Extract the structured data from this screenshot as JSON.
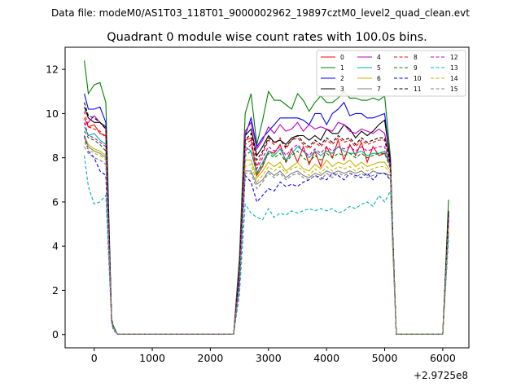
{
  "chart_data": {
    "type": "line",
    "suptitle": "Data file: modeM0/AS1T03_118T01_9000002962_19897cztM0_level2_quad_clean.evt",
    "title": "Quadrant 0 module wise count rates with 100.0s bins.",
    "xlabel": "",
    "ylabel": "",
    "x_offset_label": "+2.9725e8",
    "xlim": [
      -500,
      6450
    ],
    "ylim": [
      -0.6,
      13.0
    ],
    "x_ticks": [
      0,
      1000,
      2000,
      3000,
      4000,
      5000,
      6000
    ],
    "y_ticks": [
      0,
      2,
      4,
      6,
      8,
      10,
      12
    ],
    "grid": false,
    "legend_position": "top-right",
    "x": [
      -170,
      -100,
      0,
      100,
      200,
      300,
      330,
      400,
      500,
      2400,
      2500,
      2600,
      2700,
      2800,
      2900,
      3000,
      3100,
      3200,
      3300,
      3400,
      3500,
      3600,
      3700,
      3800,
      3900,
      4000,
      4100,
      4200,
      4300,
      4400,
      4500,
      4600,
      4700,
      4800,
      4900,
      5000,
      5100,
      5140,
      5200,
      5300,
      6000,
      6100
    ],
    "series": [
      {
        "name": "0",
        "color": "#ff0000",
        "style": "solid",
        "values": [
          9.8,
          9.4,
          9.5,
          9.1,
          9.0,
          0.6,
          0.3,
          0.02,
          0.02,
          0.02,
          2.5,
          8.8,
          8.9,
          7.2,
          7.6,
          8.3,
          8.2,
          8.6,
          7.8,
          8.4,
          7.8,
          8.5,
          7.7,
          8.3,
          7.6,
          8.5,
          8.0,
          8.8,
          7.9,
          8.6,
          8.1,
          8.7,
          7.8,
          8.5,
          8.1,
          8.2,
          7.7,
          4.2,
          0.02,
          0.02,
          0.02,
          5.5
        ]
      },
      {
        "name": "1",
        "color": "#008000",
        "style": "solid",
        "values": [
          12.4,
          10.9,
          11.3,
          11.4,
          10.5,
          0.7,
          0.4,
          0.02,
          0.02,
          0.02,
          3.5,
          10.0,
          10.9,
          8.6,
          9.7,
          11.0,
          10.6,
          10.6,
          10.4,
          10.2,
          10.9,
          10.6,
          10.1,
          10.5,
          10.8,
          10.5,
          10.5,
          10.7,
          11.0,
          10.7,
          10.7,
          10.6,
          10.6,
          10.7,
          10.6,
          10.8,
          8.0,
          4.5,
          0.02,
          0.02,
          0.02,
          6.1
        ]
      },
      {
        "name": "2",
        "color": "#0000ff",
        "style": "solid",
        "values": [
          10.9,
          10.2,
          10.2,
          10.3,
          9.6,
          0.7,
          0.3,
          0.02,
          0.02,
          0.02,
          3.0,
          9.0,
          9.8,
          8.5,
          8.9,
          9.2,
          9.5,
          9.8,
          9.8,
          9.8,
          9.8,
          9.7,
          9.5,
          10.0,
          10.0,
          9.5,
          10.0,
          10.2,
          10.5,
          9.9,
          10.0,
          10.0,
          9.8,
          9.8,
          9.9,
          10.0,
          7.7,
          4.4,
          0.02,
          0.02,
          0.02,
          5.4
        ]
      },
      {
        "name": "3",
        "color": "#000000",
        "style": "solid",
        "values": [
          10.3,
          9.8,
          9.6,
          9.6,
          9.4,
          0.7,
          0.3,
          0.02,
          0.02,
          0.02,
          2.8,
          9.0,
          9.3,
          8.1,
          8.5,
          9.0,
          8.7,
          8.8,
          8.6,
          8.9,
          9.0,
          9.0,
          8.8,
          9.0,
          8.8,
          9.3,
          9.1,
          9.1,
          9.5,
          9.3,
          8.9,
          9.2,
          9.0,
          9.2,
          9.5,
          9.7,
          7.8,
          4.5,
          0.02,
          0.02,
          0.02,
          5.6
        ]
      },
      {
        "name": "4",
        "color": "#c000c0",
        "style": "solid",
        "values": [
          9.5,
          9.6,
          9.9,
          9.6,
          9.3,
          0.6,
          0.3,
          0.02,
          0.02,
          0.02,
          2.9,
          9.2,
          9.6,
          8.4,
          8.8,
          9.4,
          9.1,
          9.5,
          9.2,
          9.3,
          9.6,
          9.2,
          9.5,
          9.3,
          9.4,
          9.3,
          9.2,
          9.6,
          9.5,
          9.2,
          9.1,
          9.3,
          9.2,
          9.1,
          9.3,
          9.1,
          7.7,
          4.4,
          0.02,
          0.02,
          0.02,
          5.4
        ]
      },
      {
        "name": "5",
        "color": "#00b0a0",
        "style": "solid",
        "values": [
          9.4,
          9.0,
          9.1,
          8.8,
          8.6,
          0.6,
          0.3,
          0.02,
          0.02,
          0.02,
          2.6,
          8.5,
          8.3,
          7.3,
          7.8,
          8.3,
          8.1,
          8.4,
          7.9,
          8.2,
          8.5,
          8.3,
          8.0,
          8.3,
          8.1,
          8.3,
          8.2,
          8.5,
          8.3,
          8.2,
          8.2,
          8.3,
          8.1,
          8.2,
          8.2,
          8.3,
          7.6,
          4.3,
          0.02,
          0.02,
          0.02,
          5.2
        ]
      },
      {
        "name": "6",
        "color": "#c8b400",
        "style": "solid",
        "values": [
          9.0,
          8.6,
          8.4,
          8.3,
          8.1,
          0.6,
          0.3,
          0.02,
          0.02,
          0.02,
          2.4,
          7.9,
          7.9,
          7.1,
          7.4,
          7.8,
          7.6,
          7.8,
          7.4,
          7.6,
          7.8,
          7.5,
          7.4,
          7.7,
          7.5,
          7.9,
          7.6,
          7.8,
          7.7,
          7.9,
          7.6,
          7.8,
          7.6,
          7.7,
          7.8,
          7.8,
          7.4,
          4.2,
          0.02,
          0.02,
          0.02,
          5.0
        ]
      },
      {
        "name": "7",
        "color": "#808080",
        "style": "solid",
        "values": [
          8.9,
          8.5,
          8.3,
          8.2,
          8.0,
          0.6,
          0.3,
          0.02,
          0.02,
          0.02,
          2.3,
          7.4,
          7.4,
          6.8,
          7.0,
          7.4,
          7.2,
          7.4,
          7.1,
          7.3,
          7.4,
          7.2,
          7.1,
          7.3,
          7.2,
          7.4,
          7.3,
          7.4,
          7.3,
          7.4,
          7.3,
          7.4,
          7.2,
          7.4,
          7.3,
          7.3,
          7.2,
          4.1,
          0.02,
          0.02,
          0.02,
          4.8
        ]
      },
      {
        "name": "8",
        "color": "#ff0000",
        "style": "dashed",
        "values": [
          10.1,
          9.4,
          9.3,
          9.2,
          8.9,
          0.6,
          0.3,
          0.02,
          0.02,
          0.02,
          2.7,
          8.6,
          8.8,
          7.6,
          8.2,
          8.8,
          8.6,
          8.9,
          8.4,
          8.8,
          8.9,
          8.6,
          8.4,
          8.7,
          8.5,
          8.8,
          8.6,
          8.9,
          8.7,
          8.8,
          8.5,
          8.8,
          8.6,
          8.7,
          8.8,
          8.8,
          7.6,
          4.3,
          0.02,
          0.02,
          0.02,
          5.3
        ]
      },
      {
        "name": "9",
        "color": "#008000",
        "style": "dashed",
        "values": [
          9.2,
          8.9,
          8.8,
          8.6,
          8.3,
          0.6,
          0.3,
          0.02,
          0.02,
          0.02,
          2.5,
          8.1,
          8.3,
          7.3,
          7.7,
          8.2,
          8.0,
          8.2,
          7.8,
          8.1,
          8.3,
          8.0,
          7.8,
          8.1,
          7.9,
          8.2,
          8.0,
          8.2,
          8.1,
          8.2,
          8.0,
          8.2,
          8.0,
          8.1,
          8.2,
          8.2,
          7.5,
          4.2,
          0.02,
          0.02,
          0.02,
          5.1
        ]
      },
      {
        "name": "10",
        "color": "#0000ff",
        "style": "dashed",
        "values": [
          9.0,
          8.3,
          8.0,
          7.4,
          7.2,
          0.6,
          0.3,
          0.02,
          0.02,
          0.02,
          2.2,
          7.2,
          6.9,
          6.0,
          6.3,
          6.6,
          6.5,
          6.9,
          6.7,
          6.8,
          6.7,
          6.9,
          7.0,
          7.2,
          7.1,
          7.0,
          7.3,
          7.2,
          7.0,
          7.3,
          7.2,
          7.1,
          7.3,
          7.0,
          7.3,
          7.3,
          7.0,
          4.0,
          0.02,
          0.02,
          0.02,
          4.6
        ]
      },
      {
        "name": "11",
        "color": "#000000",
        "style": "dashed",
        "values": [
          10.5,
          9.9,
          9.8,
          9.6,
          9.3,
          0.7,
          0.3,
          0.02,
          0.02,
          0.02,
          2.8,
          8.8,
          9.1,
          7.9,
          8.3,
          8.9,
          8.7,
          8.8,
          8.5,
          8.8,
          9.0,
          8.7,
          8.5,
          8.8,
          8.6,
          8.9,
          8.7,
          9.0,
          8.8,
          8.9,
          8.6,
          8.9,
          8.7,
          8.8,
          8.9,
          8.9,
          7.7,
          4.4,
          0.02,
          0.02,
          0.02,
          5.4
        ]
      },
      {
        "name": "12",
        "color": "#c000c0",
        "style": "dashed",
        "values": [
          9.6,
          9.0,
          8.9,
          8.7,
          8.5,
          0.6,
          0.3,
          0.02,
          0.02,
          0.02,
          2.6,
          8.3,
          8.6,
          7.5,
          8.0,
          8.5,
          8.3,
          8.5,
          8.1,
          8.4,
          8.6,
          8.3,
          8.1,
          8.4,
          8.2,
          8.5,
          8.3,
          8.5,
          8.4,
          8.5,
          8.3,
          8.5,
          8.3,
          8.4,
          8.5,
          8.5,
          7.6,
          4.3,
          0.02,
          0.02,
          0.02,
          5.2
        ]
      },
      {
        "name": "13",
        "color": "#00b0c0",
        "style": "dashed",
        "values": [
          8.1,
          6.7,
          5.9,
          6.0,
          6.3,
          0.5,
          0.2,
          0.02,
          0.02,
          0.02,
          1.8,
          5.9,
          5.5,
          5.3,
          5.2,
          5.7,
          5.3,
          5.5,
          5.4,
          5.6,
          5.5,
          5.6,
          5.7,
          5.6,
          5.7,
          5.6,
          5.7,
          5.5,
          5.6,
          5.8,
          5.7,
          5.9,
          6.0,
          5.8,
          6.3,
          6.0,
          6.5,
          3.8,
          0.02,
          0.02,
          0.02,
          4.3
        ]
      },
      {
        "name": "14",
        "color": "#c8b400",
        "style": "dashed",
        "values": [
          8.7,
          8.4,
          8.2,
          8.1,
          7.9,
          0.6,
          0.3,
          0.02,
          0.02,
          0.02,
          2.3,
          7.6,
          7.7,
          6.9,
          7.2,
          7.6,
          7.4,
          7.6,
          7.3,
          7.5,
          7.6,
          7.4,
          7.2,
          7.5,
          7.3,
          7.6,
          7.4,
          7.6,
          7.5,
          7.6,
          7.4,
          7.6,
          7.4,
          7.5,
          7.6,
          7.6,
          7.3,
          4.1,
          0.02,
          0.02,
          0.02,
          4.9
        ]
      },
      {
        "name": "15",
        "color": "#808080",
        "style": "dashed",
        "values": [
          8.5,
          8.2,
          8.0,
          7.9,
          7.7,
          0.6,
          0.3,
          0.02,
          0.02,
          0.02,
          2.2,
          7.3,
          7.3,
          6.6,
          6.9,
          7.3,
          7.1,
          7.3,
          7.0,
          7.2,
          7.3,
          7.1,
          7.0,
          7.2,
          7.0,
          7.3,
          7.1,
          7.3,
          7.2,
          7.3,
          7.1,
          7.3,
          7.1,
          7.2,
          7.3,
          7.3,
          7.1,
          4.0,
          0.02,
          0.02,
          0.02,
          4.7
        ]
      }
    ]
  }
}
